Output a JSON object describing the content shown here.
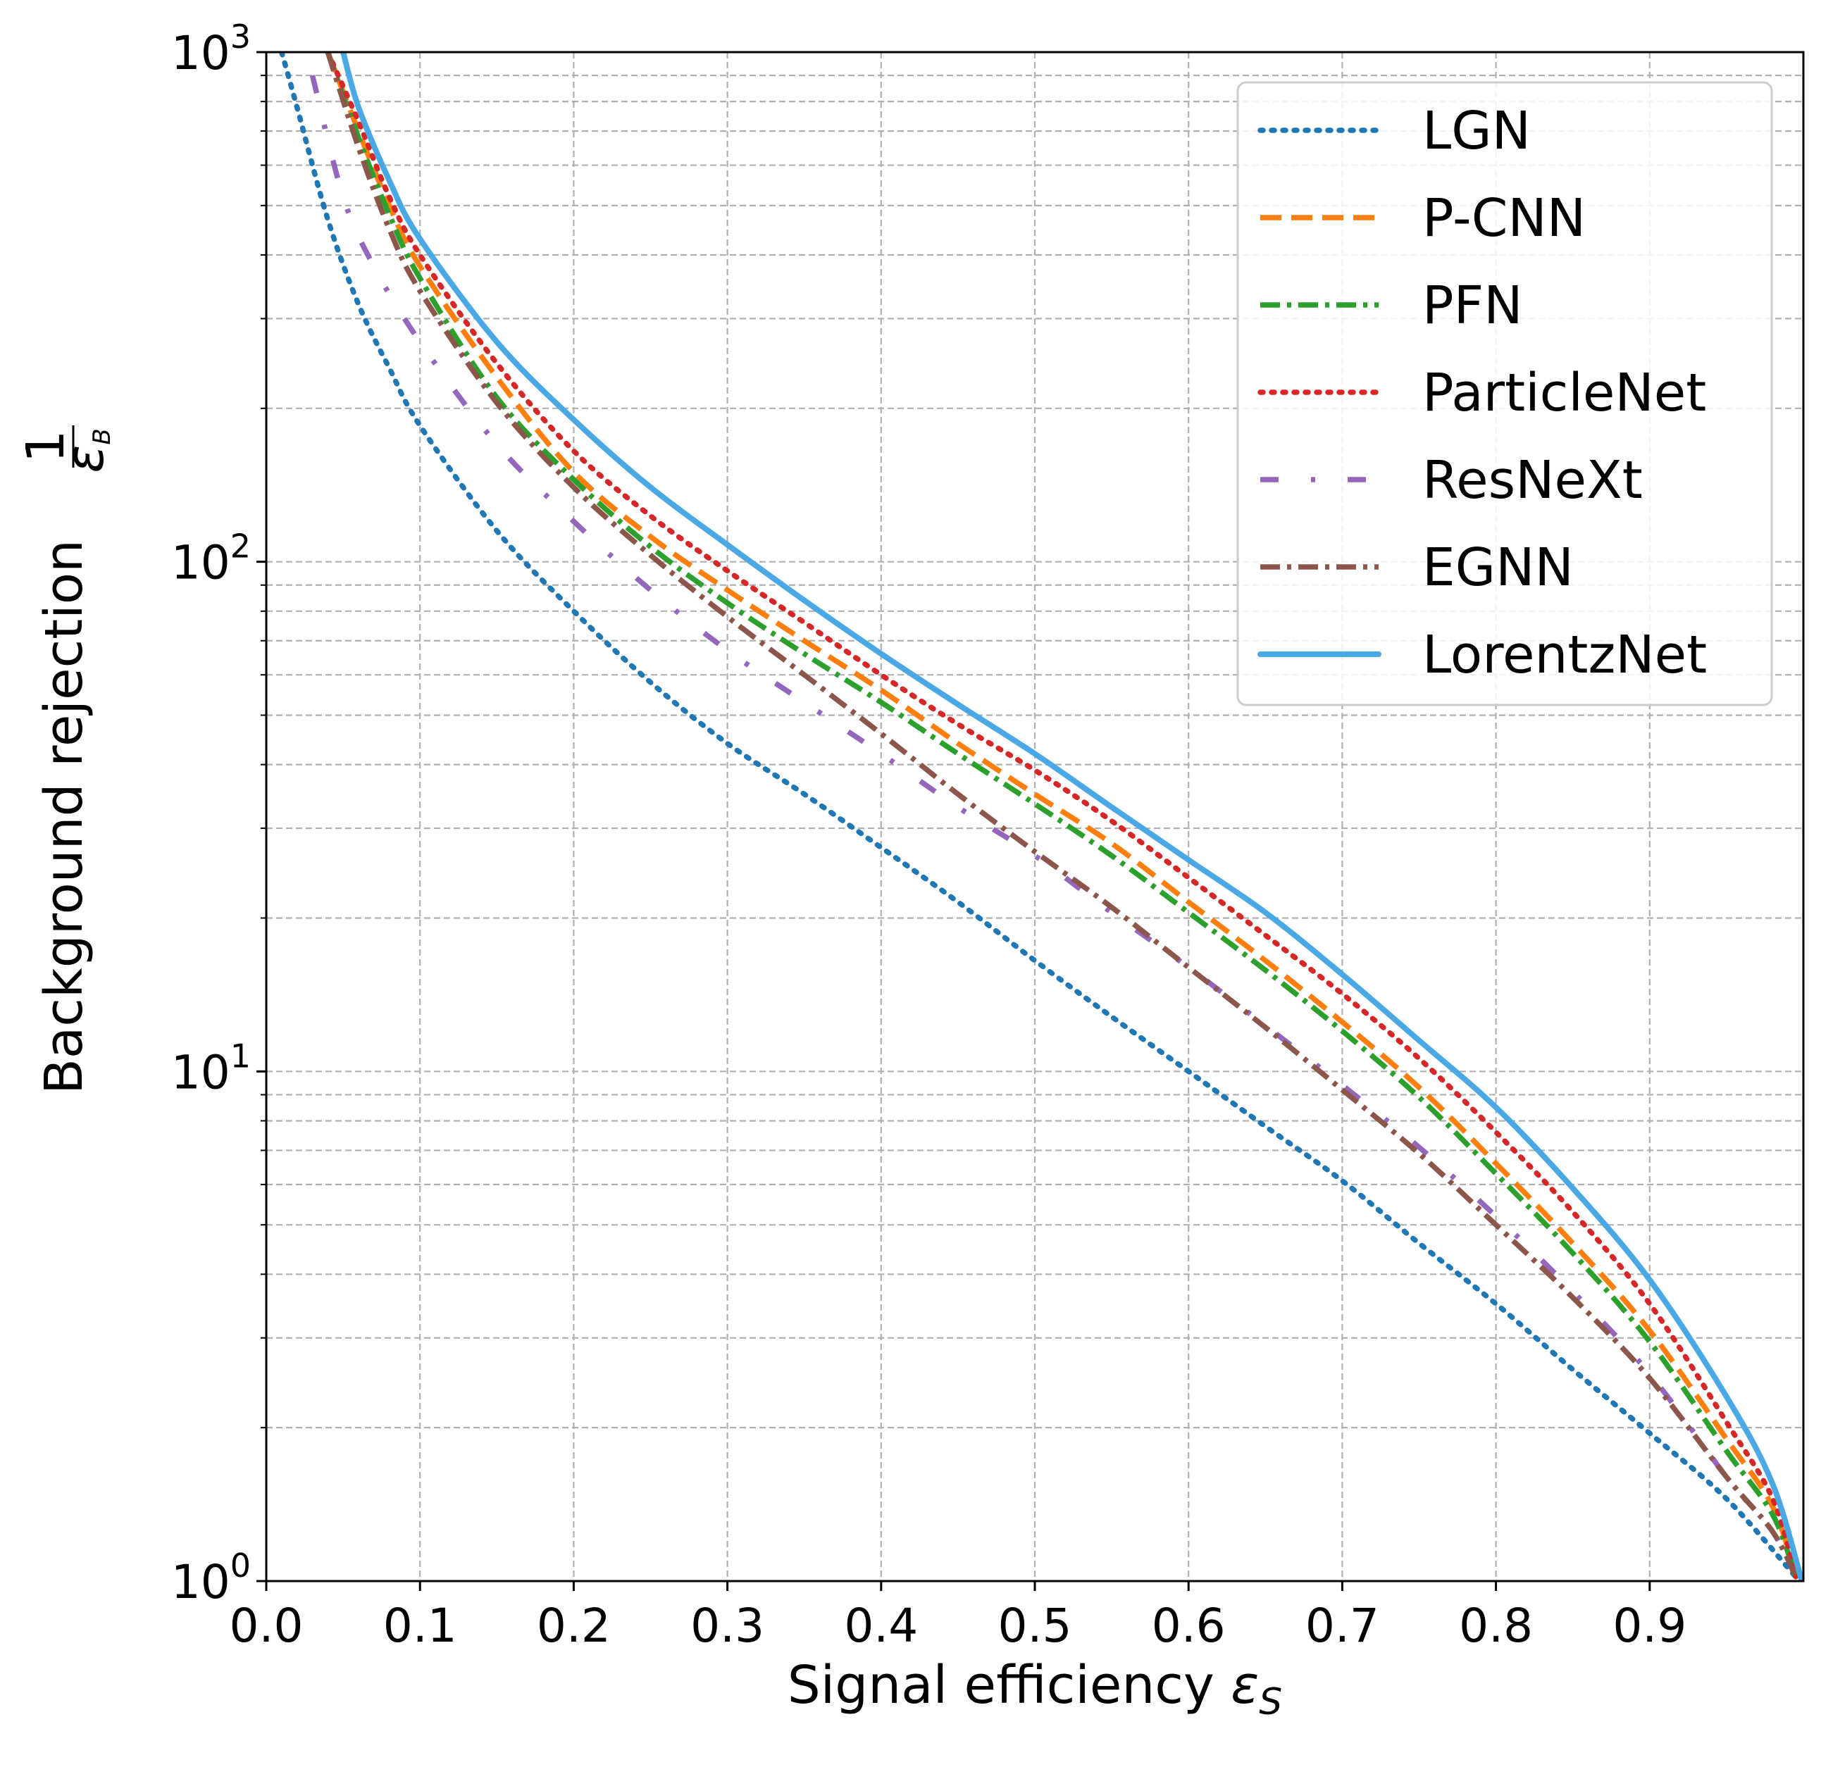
{
  "chart_data": {
    "type": "line",
    "xlabel": "Signal efficiency ",
    "xlabel_symbol": "ε",
    "xlabel_subscript": "S",
    "ylabel": "Background rejection ",
    "ylabel_fraction_numerator": "1",
    "ylabel_fraction_denominator": "ε",
    "ylabel_fraction_subscript": "B",
    "xlim": [
      0.0,
      1.0
    ],
    "ylim": [
      1,
      1000
    ],
    "y_scale": "log",
    "grid": "both, dashed gray, major and minor",
    "legend_position": "top-right",
    "x_ticks": [
      "0.0",
      "0.1",
      "0.2",
      "0.3",
      "0.4",
      "0.5",
      "0.6",
      "0.7",
      "0.8",
      "0.9"
    ],
    "x_tick_values": [
      0.0,
      0.1,
      0.2,
      0.3,
      0.4,
      0.5,
      0.6,
      0.7,
      0.8,
      0.9
    ],
    "y_ticks": [
      {
        "base": "10",
        "exp": "0",
        "value": 1
      },
      {
        "base": "10",
        "exp": "1",
        "value": 10
      },
      {
        "base": "10",
        "exp": "2",
        "value": 100
      },
      {
        "base": "10",
        "exp": "3",
        "value": 1000
      }
    ],
    "series": [
      {
        "name": "LGN",
        "color": "#1f77b4",
        "style": "dotted",
        "x": [
          0.01,
          0.02,
          0.04,
          0.06,
          0.08,
          0.1,
          0.15,
          0.2,
          0.25,
          0.3,
          0.35,
          0.4,
          0.45,
          0.5,
          0.55,
          0.6,
          0.65,
          0.7,
          0.75,
          0.8,
          0.85,
          0.9,
          0.95,
          0.995
        ],
        "y": [
          1000,
          780,
          470,
          320,
          240,
          185,
          115,
          80,
          58,
          44,
          35,
          27.5,
          21.5,
          16.5,
          12.8,
          10,
          7.8,
          6.1,
          4.6,
          3.5,
          2.6,
          1.95,
          1.45,
          1.02
        ]
      },
      {
        "name": "P-CNN",
        "color": "#ff7f0e",
        "style": "dashed",
        "x": [
          0.04,
          0.06,
          0.08,
          0.1,
          0.15,
          0.2,
          0.25,
          0.3,
          0.35,
          0.4,
          0.45,
          0.5,
          0.55,
          0.6,
          0.65,
          0.7,
          0.75,
          0.8,
          0.85,
          0.9,
          0.95,
          0.98,
          0.995
        ],
        "y": [
          1000,
          700,
          500,
          380,
          230,
          150,
          112,
          88,
          70,
          56,
          44,
          35,
          28,
          21.5,
          16.5,
          12.5,
          9.3,
          6.6,
          4.6,
          3.1,
          1.9,
          1.4,
          1.02
        ]
      },
      {
        "name": "PFN",
        "color": "#2ca02c",
        "style": "dashdot",
        "x": [
          0.04,
          0.06,
          0.08,
          0.1,
          0.15,
          0.2,
          0.25,
          0.3,
          0.35,
          0.4,
          0.45,
          0.5,
          0.55,
          0.6,
          0.65,
          0.7,
          0.75,
          0.8,
          0.85,
          0.9,
          0.95,
          0.98,
          0.995
        ],
        "y": [
          1000,
          680,
          480,
          360,
          210,
          145,
          107,
          83,
          66,
          53,
          42,
          33.5,
          26.5,
          20.5,
          15.8,
          12,
          8.9,
          6.3,
          4.4,
          2.95,
          1.8,
          1.35,
          1.02
        ]
      },
      {
        "name": "ParticleNet",
        "color": "#d62728",
        "style": "dotted",
        "x": [
          0.04,
          0.06,
          0.08,
          0.1,
          0.15,
          0.2,
          0.25,
          0.3,
          0.35,
          0.4,
          0.45,
          0.5,
          0.55,
          0.6,
          0.65,
          0.7,
          0.75,
          0.8,
          0.85,
          0.9,
          0.95,
          0.98,
          0.995
        ],
        "y": [
          1000,
          730,
          520,
          400,
          245,
          165,
          123,
          96,
          76,
          60,
          48,
          39,
          31,
          24,
          18.5,
          14.2,
          10.6,
          7.6,
          5.3,
          3.5,
          2.05,
          1.45,
          1.02
        ]
      },
      {
        "name": "ResNeXt",
        "color": "#9467bd",
        "style": "dashdot-sparse",
        "x": [
          0.03,
          0.05,
          0.07,
          0.1,
          0.15,
          0.2,
          0.25,
          0.3,
          0.35,
          0.4,
          0.45,
          0.5,
          0.55,
          0.6,
          0.65,
          0.7,
          0.75,
          0.8,
          0.85,
          0.9,
          0.95,
          0.98,
          0.995
        ],
        "y": [
          900,
          520,
          380,
          270,
          170,
          120,
          88,
          67,
          53,
          42,
          33,
          26.5,
          20.5,
          16,
          12.3,
          9.4,
          7.1,
          5.2,
          3.7,
          2.55,
          1.6,
          1.25,
          1.02
        ]
      },
      {
        "name": "EGNN",
        "color": "#8c564b",
        "style": "dashdot",
        "x": [
          0.04,
          0.06,
          0.08,
          0.1,
          0.15,
          0.2,
          0.25,
          0.3,
          0.35,
          0.4,
          0.45,
          0.5,
          0.55,
          0.6,
          0.65,
          0.7,
          0.75,
          0.8,
          0.85,
          0.9,
          0.95,
          0.98,
          0.995
        ],
        "y": [
          1000,
          650,
          450,
          340,
          205,
          140,
          103,
          78,
          60,
          46,
          35,
          27,
          21,
          16,
          12.2,
          9.2,
          6.9,
          5.0,
          3.6,
          2.5,
          1.6,
          1.25,
          1.02
        ]
      },
      {
        "name": "LorentzNet",
        "color": "#4aa8e4",
        "style": "solid",
        "x": [
          0.05,
          0.06,
          0.08,
          0.1,
          0.15,
          0.2,
          0.25,
          0.3,
          0.35,
          0.4,
          0.45,
          0.5,
          0.55,
          0.6,
          0.65,
          0.7,
          0.75,
          0.8,
          0.85,
          0.9,
          0.95,
          0.98,
          0.999
        ],
        "y": [
          1000,
          780,
          560,
          430,
          270,
          190,
          140,
          108,
          84,
          66,
          52.5,
          42,
          33,
          26,
          20.5,
          15.5,
          11.5,
          8.5,
          5.9,
          3.9,
          2.3,
          1.55,
          1.0
        ]
      }
    ]
  }
}
